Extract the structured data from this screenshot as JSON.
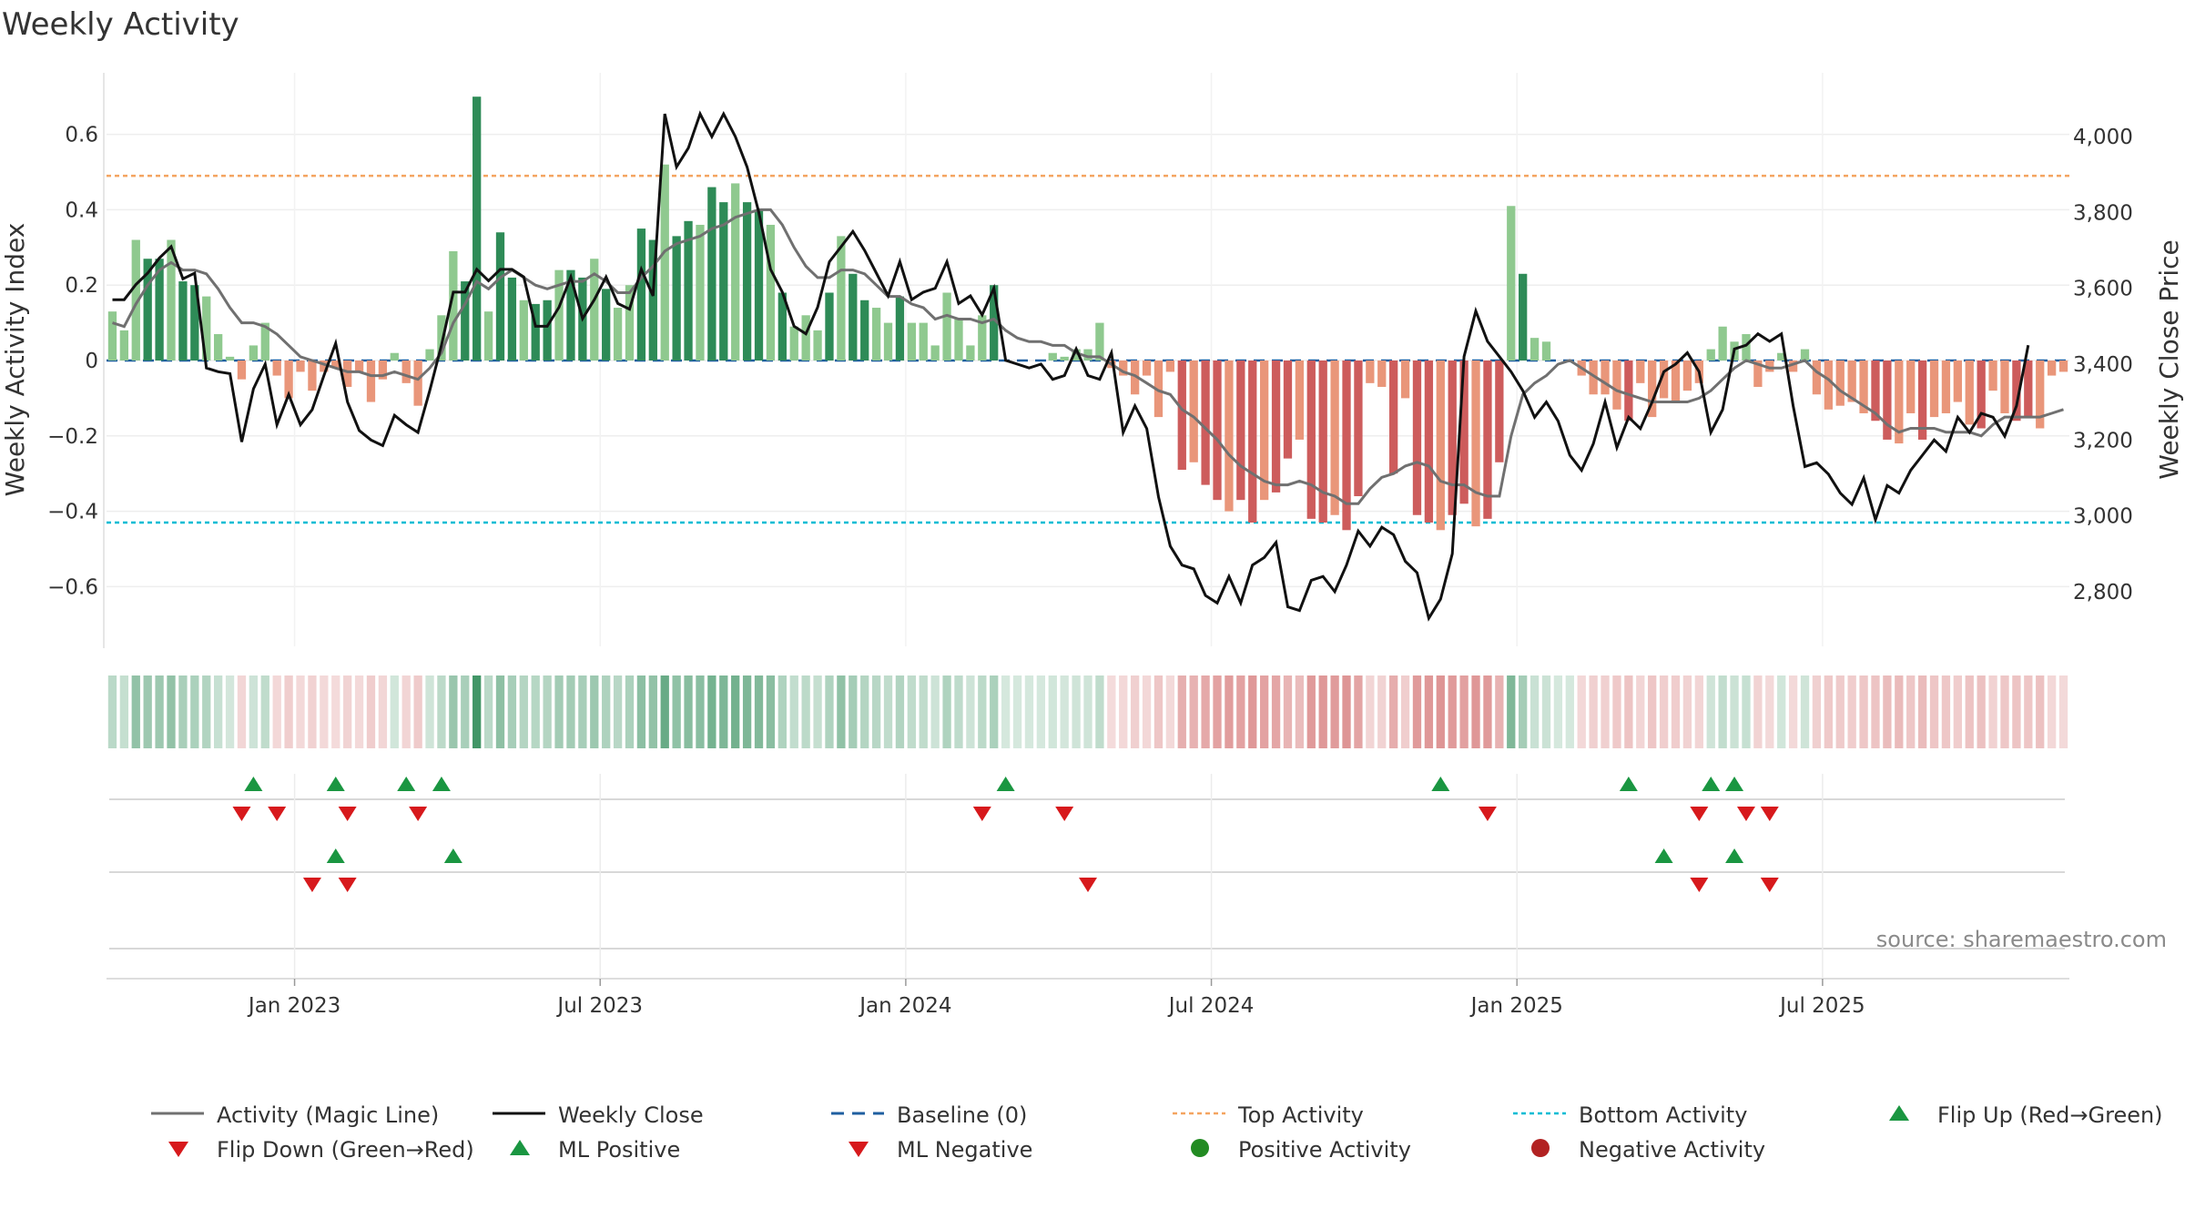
{
  "chart_data": {
    "type": "bar",
    "title": "Weekly Activity",
    "source": "source: sharemaestro.com",
    "ylabel": "Weekly Activity Index",
    "y2label": "Weekly Close Price",
    "ylim": [
      -0.76,
      0.76
    ],
    "y2lim": [
      2640,
      4220
    ],
    "yticks": [
      0.6,
      0.4,
      0.2,
      0,
      -0.2,
      -0.4,
      -0.6
    ],
    "ytick_labels": [
      "0.6",
      "0.4",
      "0.2",
      "0",
      "−0.2",
      "−0.4",
      "−0.6"
    ],
    "y2ticks": [
      4000,
      3800,
      3600,
      3400,
      3200,
      3000,
      2800
    ],
    "y2tick_labels": [
      "4,000",
      "3,800",
      "3,600",
      "3,400",
      "3,200",
      "3,000",
      "2,800"
    ],
    "xtick_labels": [
      "Jan 2023",
      "Jul 2023",
      "Jan 2024",
      "Jul 2024",
      "Jan 2025",
      "Jul 2025"
    ],
    "xtick_weeks": [
      16,
      42,
      68,
      94,
      120,
      146
    ],
    "top_activity": 0.49,
    "bottom_activity": -0.43,
    "baseline": 0,
    "colors": {
      "pos_strong": "#2e8b57",
      "pos_weak": "#8fc98f",
      "neg_strong": "#cd5c5c",
      "neg_weak": "#e9967a",
      "magic_line": "#707070",
      "close": "#111111",
      "baseline": "#1f5fa0",
      "top": "#f4a460",
      "bottom": "#00bcd4",
      "flip_up": "#1a9641",
      "flip_down": "#d7191c",
      "pos_activity": "#228b22",
      "neg_activity": "#b22222"
    },
    "series": [
      {
        "name": "Weekly Activity Index",
        "values": [
          0.13,
          0.08,
          0.32,
          0.27,
          0.27,
          0.32,
          0.21,
          0.2,
          0.17,
          0.07,
          0.01,
          -0.05,
          0.04,
          0.1,
          -0.04,
          -0.1,
          -0.03,
          -0.08,
          -0.03,
          -0.02,
          -0.07,
          -0.03,
          -0.11,
          -0.05,
          0.02,
          -0.06,
          -0.12,
          0.03,
          0.12,
          0.29,
          0.21,
          0.7,
          0.13,
          0.34,
          0.22,
          0.16,
          0.15,
          0.16,
          0.24,
          0.24,
          0.22,
          0.27,
          0.19,
          0.14,
          0.2,
          0.35,
          0.32,
          0.52,
          0.33,
          0.37,
          0.36,
          0.46,
          0.42,
          0.47,
          0.42,
          0.4,
          0.36,
          0.18,
          0.09,
          0.12,
          0.08,
          0.18,
          0.33,
          0.23,
          0.16,
          0.14,
          0.1,
          0.17,
          0.1,
          0.1,
          0.04,
          0.18,
          0.11,
          0.04,
          0.12,
          0.2,
          0.0,
          0.0,
          0.0,
          0.0,
          0.02,
          0.01,
          0.03,
          0.03,
          0.1,
          -0.02,
          -0.04,
          -0.09,
          -0.04,
          -0.15,
          -0.03,
          -0.29,
          -0.27,
          -0.33,
          -0.37,
          -0.4,
          -0.37,
          -0.43,
          -0.37,
          -0.35,
          -0.26,
          -0.21,
          -0.42,
          -0.43,
          -0.41,
          -0.45,
          -0.36,
          -0.06,
          -0.07,
          -0.3,
          -0.1,
          -0.41,
          -0.43,
          -0.45,
          -0.41,
          -0.38,
          -0.44,
          -0.42,
          -0.27,
          0.41,
          0.23,
          0.06,
          0.05,
          0.0,
          0.0,
          -0.04,
          -0.09,
          -0.09,
          -0.13,
          -0.16,
          -0.06,
          -0.15,
          -0.1,
          -0.11,
          -0.08,
          -0.06,
          0.03,
          0.09,
          0.05,
          0.07,
          -0.07,
          -0.03,
          0.02,
          -0.03,
          0.03,
          -0.09,
          -0.13,
          -0.12,
          -0.11,
          -0.14,
          -0.16,
          -0.21,
          -0.22,
          -0.14,
          -0.21,
          -0.15,
          -0.14,
          -0.11,
          -0.17,
          -0.18,
          -0.08,
          -0.14,
          -0.16,
          -0.15,
          -0.18,
          -0.04,
          -0.03
        ]
      },
      {
        "name": "Activity (Magic Line)",
        "values": [
          0.1,
          0.09,
          0.15,
          0.2,
          0.24,
          0.26,
          0.24,
          0.24,
          0.23,
          0.19,
          0.14,
          0.1,
          0.1,
          0.09,
          0.07,
          0.04,
          0.01,
          0.0,
          -0.01,
          -0.02,
          -0.03,
          -0.03,
          -0.04,
          -0.04,
          -0.03,
          -0.04,
          -0.05,
          -0.02,
          0.02,
          0.1,
          0.15,
          0.21,
          0.19,
          0.22,
          0.24,
          0.22,
          0.2,
          0.19,
          0.2,
          0.21,
          0.21,
          0.23,
          0.21,
          0.18,
          0.18,
          0.22,
          0.25,
          0.29,
          0.31,
          0.32,
          0.33,
          0.35,
          0.36,
          0.38,
          0.39,
          0.4,
          0.4,
          0.36,
          0.3,
          0.25,
          0.22,
          0.22,
          0.24,
          0.24,
          0.23,
          0.2,
          0.17,
          0.17,
          0.15,
          0.14,
          0.11,
          0.12,
          0.11,
          0.11,
          0.1,
          0.11,
          0.08,
          0.06,
          0.05,
          0.05,
          0.04,
          0.04,
          0.02,
          0.01,
          0.01,
          -0.01,
          -0.03,
          -0.04,
          -0.06,
          -0.08,
          -0.09,
          -0.13,
          -0.15,
          -0.18,
          -0.21,
          -0.25,
          -0.28,
          -0.3,
          -0.32,
          -0.33,
          -0.33,
          -0.32,
          -0.33,
          -0.35,
          -0.36,
          -0.38,
          -0.38,
          -0.34,
          -0.31,
          -0.3,
          -0.28,
          -0.27,
          -0.28,
          -0.32,
          -0.33,
          -0.33,
          -0.35,
          -0.36,
          -0.36,
          -0.2,
          -0.09,
          -0.06,
          -0.04,
          -0.01,
          0.0,
          -0.02,
          -0.04,
          -0.06,
          -0.08,
          -0.09,
          -0.1,
          -0.11,
          -0.11,
          -0.11,
          -0.11,
          -0.1,
          -0.08,
          -0.05,
          -0.02,
          0.0,
          -0.01,
          -0.02,
          -0.02,
          -0.01,
          0.0,
          -0.03,
          -0.05,
          -0.08,
          -0.1,
          -0.12,
          -0.14,
          -0.17,
          -0.19,
          -0.18,
          -0.18,
          -0.18,
          -0.19,
          -0.19,
          -0.19,
          -0.2,
          -0.17,
          -0.15,
          -0.15,
          -0.15,
          -0.15,
          -0.14,
          -0.13
        ]
      },
      {
        "name": "Weekly Close",
        "values": [
          3570,
          3570,
          3610,
          3640,
          3680,
          3710,
          3625,
          3640,
          3390,
          3380,
          3375,
          3195,
          3335,
          3400,
          3240,
          3320,
          3240,
          3280,
          3370,
          3455,
          3300,
          3225,
          3200,
          3185,
          3265,
          3240,
          3220,
          3330,
          3450,
          3590,
          3590,
          3650,
          3620,
          3650,
          3650,
          3630,
          3500,
          3500,
          3550,
          3630,
          3520,
          3570,
          3630,
          3560,
          3545,
          3650,
          3580,
          4060,
          3920,
          3970,
          4060,
          4000,
          4060,
          4000,
          3920,
          3800,
          3650,
          3590,
          3500,
          3480,
          3550,
          3670,
          3710,
          3750,
          3700,
          3640,
          3580,
          3670,
          3570,
          3590,
          3600,
          3670,
          3560,
          3580,
          3530,
          3600,
          3410,
          3400,
          3390,
          3400,
          3360,
          3370,
          3440,
          3370,
          3360,
          3430,
          3220,
          3290,
          3230,
          3050,
          2920,
          2870,
          2860,
          2790,
          2770,
          2840,
          2770,
          2870,
          2890,
          2930,
          2760,
          2750,
          2830,
          2840,
          2800,
          2870,
          2960,
          2920,
          2970,
          2950,
          2880,
          2850,
          2730,
          2780,
          2900,
          3420,
          3540,
          3460,
          3420,
          3380,
          3330,
          3260,
          3300,
          3250,
          3160,
          3120,
          3190,
          3300,
          3180,
          3260,
          3230,
          3300,
          3380,
          3400,
          3430,
          3380,
          3220,
          3280,
          3440,
          3450,
          3480,
          3460,
          3480,
          3290,
          3130,
          3140,
          3110,
          3060,
          3030,
          3100,
          2990,
          3080,
          3060,
          3120,
          3160,
          3200,
          3170,
          3260,
          3220,
          3270,
          3260,
          3210,
          3290,
          3450
        ]
      }
    ],
    "flip_rows": [
      {
        "name": "Flip Up (Red→Green)",
        "weeks": [
          12,
          19,
          25,
          28,
          76,
          113,
          129,
          136,
          138
        ]
      },
      {
        "name": "Flip Down (Green→Red)",
        "weeks": [
          11,
          14,
          20,
          26,
          74,
          81,
          117,
          135,
          139,
          141
        ]
      },
      {
        "name": "ML Positive",
        "weeks": [
          19,
          29,
          132,
          138
        ]
      },
      {
        "name": "ML Negative",
        "weeks": [
          17,
          20,
          83,
          135,
          141
        ]
      }
    ],
    "legend": [
      {
        "label": "Activity (Magic Line)",
        "marker": "line",
        "color": "#707070"
      },
      {
        "label": "Weekly Close",
        "marker": "line",
        "color": "#111111"
      },
      {
        "label": "Baseline (0)",
        "marker": "dash",
        "color": "#1f5fa0"
      },
      {
        "label": "Top Activity",
        "marker": "dot-line",
        "color": "#f4a460"
      },
      {
        "label": "Bottom Activity",
        "marker": "dot-line",
        "color": "#00bcd4"
      },
      {
        "label": "Flip Up (Red→Green)",
        "marker": "tri-up",
        "color": "#1a9641"
      },
      {
        "label": "Flip Down (Green→Red)",
        "marker": "tri-down",
        "color": "#d7191c"
      },
      {
        "label": "ML Positive",
        "marker": "tri-up",
        "color": "#1a9641"
      },
      {
        "label": "ML Negative",
        "marker": "tri-down",
        "color": "#d7191c"
      },
      {
        "label": "Positive Activity",
        "marker": "circle",
        "color": "#228b22"
      },
      {
        "label": "Negative Activity",
        "marker": "circle",
        "color": "#b22222"
      }
    ]
  }
}
